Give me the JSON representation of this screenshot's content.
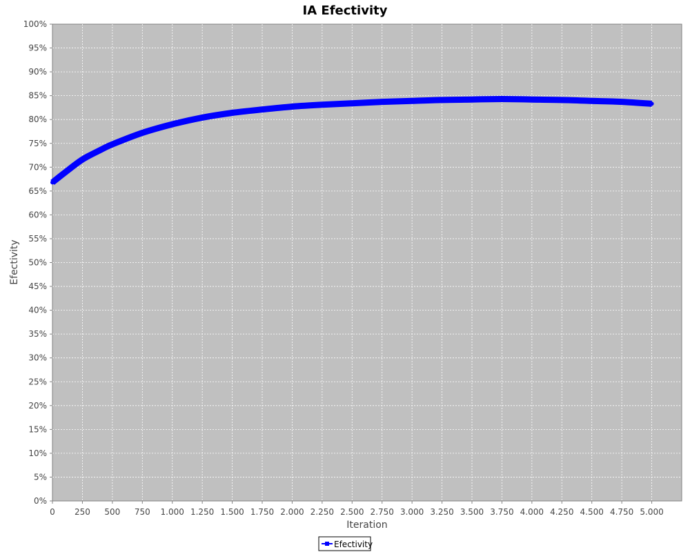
{
  "chart_data": {
    "type": "line",
    "title": "IA Efectivity",
    "xlabel": "Iteration",
    "ylabel": "Efectivity",
    "xlim": [
      0,
      5250
    ],
    "ylim": [
      0,
      100
    ],
    "x_ticks": [
      0,
      250,
      500,
      750,
      1000,
      1250,
      1500,
      1750,
      2000,
      2250,
      2500,
      2750,
      3000,
      3250,
      3500,
      3750,
      4000,
      4250,
      4500,
      4750,
      5000
    ],
    "x_tick_labels": [
      "0",
      "250",
      "500",
      "750",
      "1.000",
      "1.250",
      "1.500",
      "1.750",
      "2.000",
      "2.250",
      "2.500",
      "2.750",
      "3.000",
      "3.250",
      "3.500",
      "3.750",
      "4.000",
      "4.250",
      "4.500",
      "4.750",
      "5.000"
    ],
    "y_ticks": [
      0,
      5,
      10,
      15,
      20,
      25,
      30,
      35,
      40,
      45,
      50,
      55,
      60,
      65,
      70,
      75,
      80,
      85,
      90,
      95,
      100
    ],
    "y_tick_labels": [
      "0%",
      "5%",
      "10%",
      "15%",
      "20%",
      "25%",
      "30%",
      "35%",
      "40%",
      "45%",
      "50%",
      "55%",
      "60%",
      "65%",
      "70%",
      "75%",
      "80%",
      "85%",
      "90%",
      "95%",
      "100%"
    ],
    "grid": true,
    "legend_position": "bottom-center",
    "series": [
      {
        "name": "Efectivity",
        "color": "#0000ff",
        "x": [
          0,
          100,
          250,
          400,
          500,
          750,
          1000,
          1250,
          1500,
          1750,
          2000,
          2250,
          2500,
          2750,
          3000,
          3250,
          3500,
          3750,
          4000,
          4250,
          4500,
          4750,
          5000
        ],
        "values": [
          66.8,
          68.8,
          71.6,
          73.6,
          74.8,
          77.2,
          79.0,
          80.4,
          81.4,
          82.1,
          82.7,
          83.1,
          83.4,
          83.7,
          83.9,
          84.1,
          84.2,
          84.3,
          84.2,
          84.1,
          83.9,
          83.7,
          83.3
        ]
      }
    ]
  }
}
